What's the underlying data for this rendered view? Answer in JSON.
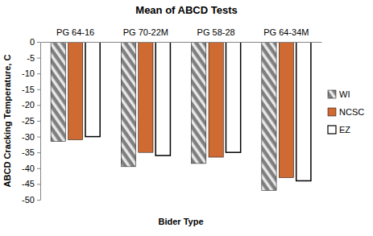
{
  "chart_data": {
    "type": "bar",
    "title": "Mean of ABCD Tests",
    "x_label": "Bider Type",
    "y_label": "ABCD Cracking Temperature, C",
    "categories": [
      "PG 64-16",
      "PG 70-22M",
      "PG 58-28",
      "PG 64-34M"
    ],
    "series": [
      {
        "name": "WI",
        "color": "#7f7f7f",
        "values": [
          -31.5,
          -39.5,
          -38.5,
          -47
        ]
      },
      {
        "name": "NCSC",
        "color": "#d06a33",
        "values": [
          -31,
          -35,
          -36.5,
          -43
        ]
      },
      {
        "name": "EZ",
        "color": "#ffffff",
        "values": [
          -30,
          -36,
          -35,
          -44
        ]
      }
    ],
    "ylim": [
      -50,
      0
    ],
    "yticks": [
      -50,
      -45,
      -40,
      -35,
      -30,
      -25,
      -20,
      -15,
      -10,
      -5,
      0
    ],
    "legend": "right",
    "grid": false
  }
}
